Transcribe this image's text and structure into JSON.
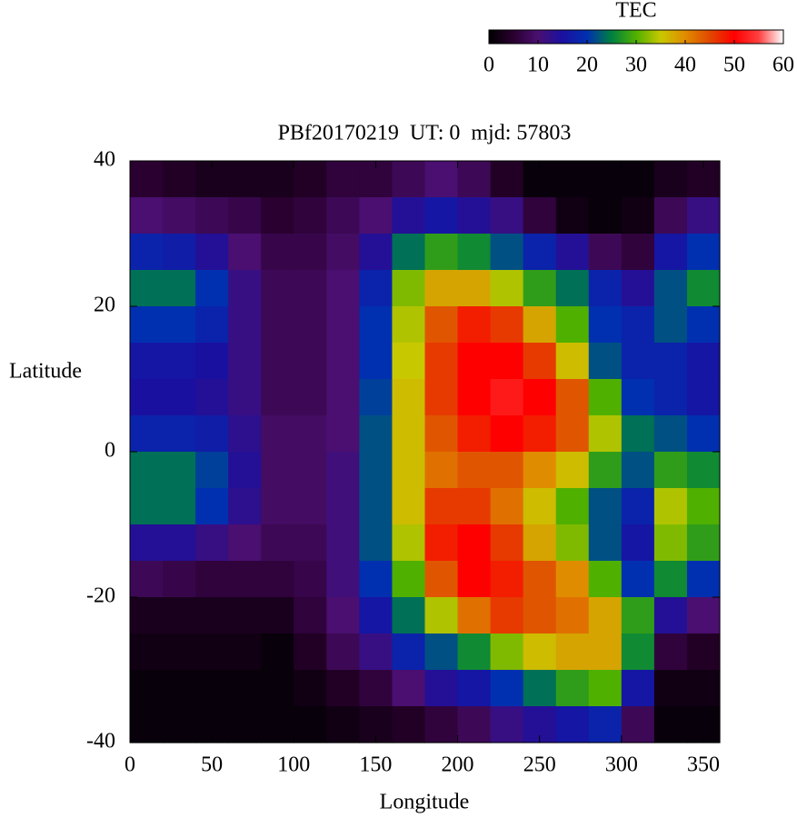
{
  "chart_data": {
    "type": "heatmap",
    "title": "PBf20170219  UT: 0  mjd: 57803",
    "x_label": "Longitude",
    "y_label": "Latitude",
    "colorbar_label": "TEC",
    "xlim": [
      0,
      360
    ],
    "ylim": [
      -40,
      40
    ],
    "xticks": [
      0,
      50,
      100,
      150,
      200,
      250,
      300,
      350
    ],
    "yticks": [
      -40,
      -20,
      0,
      20,
      40
    ],
    "clim": [
      0,
      60
    ],
    "cticks": [
      0,
      10,
      20,
      30,
      40,
      50,
      60
    ],
    "colorscale": [
      [
        0,
        "#000000"
      ],
      [
        5,
        "#2a0030"
      ],
      [
        10,
        "#4a0f70"
      ],
      [
        15,
        "#1a10a0"
      ],
      [
        20,
        "#0030b0"
      ],
      [
        25,
        "#008040"
      ],
      [
        30,
        "#50b000"
      ],
      [
        35,
        "#c8c800"
      ],
      [
        40,
        "#e08c00"
      ],
      [
        45,
        "#e04800"
      ],
      [
        50,
        "#ff0000"
      ],
      [
        55,
        "#ff4040"
      ],
      [
        60,
        "#ffffff"
      ]
    ],
    "z": [
      [
        5,
        4,
        3,
        3,
        3,
        4,
        6,
        6,
        8,
        10,
        8,
        4,
        1,
        1,
        1,
        1,
        3,
        4
      ],
      [
        10,
        9,
        8,
        7,
        5,
        6,
        8,
        10,
        14,
        16,
        14,
        12,
        6,
        2,
        1,
        2,
        8,
        12
      ],
      [
        18,
        17,
        14,
        10,
        7,
        7,
        9,
        14,
        24,
        28,
        26,
        22,
        18,
        14,
        8,
        6,
        16,
        20
      ],
      [
        24,
        24,
        20,
        12,
        8,
        8,
        10,
        18,
        32,
        38,
        38,
        34,
        28,
        24,
        18,
        14,
        22,
        26
      ],
      [
        20,
        20,
        18,
        12,
        8,
        8,
        10,
        20,
        34,
        44,
        48,
        46,
        38,
        30,
        20,
        18,
        22,
        20
      ],
      [
        16,
        16,
        15,
        12,
        8,
        8,
        10,
        20,
        35,
        46,
        50,
        50,
        46,
        36,
        22,
        18,
        18,
        16
      ],
      [
        15,
        15,
        14,
        12,
        8,
        8,
        10,
        21,
        36,
        46,
        50,
        52,
        50,
        44,
        30,
        20,
        18,
        16
      ],
      [
        18,
        18,
        17,
        13,
        9,
        9,
        10,
        22,
        36,
        44,
        48,
        50,
        48,
        44,
        34,
        24,
        22,
        20
      ],
      [
        24,
        24,
        21,
        14,
        9,
        9,
        11,
        22,
        36,
        42,
        44,
        44,
        40,
        36,
        28,
        22,
        28,
        26
      ],
      [
        24,
        24,
        20,
        13,
        9,
        9,
        11,
        22,
        36,
        46,
        46,
        42,
        36,
        30,
        22,
        18,
        34,
        30
      ],
      [
        14,
        14,
        12,
        10,
        8,
        8,
        11,
        22,
        34,
        48,
        50,
        46,
        38,
        32,
        22,
        16,
        32,
        28
      ],
      [
        8,
        7,
        6,
        6,
        6,
        7,
        11,
        20,
        30,
        44,
        50,
        48,
        44,
        40,
        30,
        20,
        26,
        20
      ],
      [
        3,
        3,
        3,
        3,
        3,
        6,
        10,
        16,
        24,
        34,
        42,
        46,
        44,
        42,
        38,
        28,
        14,
        10
      ],
      [
        2,
        2,
        2,
        2,
        1,
        4,
        8,
        12,
        18,
        22,
        26,
        32,
        36,
        38,
        38,
        26,
        6,
        4
      ],
      [
        1,
        1,
        1,
        1,
        1,
        2,
        4,
        6,
        10,
        14,
        16,
        20,
        24,
        28,
        30,
        16,
        2,
        2
      ],
      [
        1,
        1,
        1,
        1,
        1,
        1,
        2,
        3,
        4,
        6,
        8,
        12,
        14,
        16,
        18,
        8,
        1,
        1
      ]
    ]
  }
}
